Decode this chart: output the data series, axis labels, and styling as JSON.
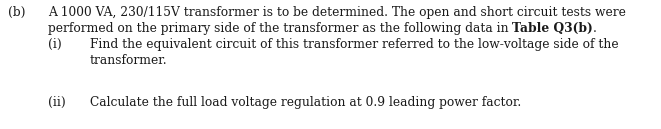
{
  "bg_color": "#ffffff",
  "text_color": "#1a1a1a",
  "label_b": "(b)",
  "line1": "A 1000 VA, 230/115V transformer is to be determined. The open and short circuit tests were",
  "line2_plain": "performed on the primary side of the transformer as the following data in ",
  "line2_bold": "Table Q3(b)",
  "line2_bold_end": ".",
  "sub_i_label": "(i)",
  "sub_i_line1": "Find the equivalent circuit of this transformer referred to the low-voltage side of the",
  "sub_i_line2": "transformer.",
  "sub_ii_label": "(ii)",
  "sub_ii_line": "Calculate the full load voltage regulation at 0.9 leading power factor.",
  "font_size": 8.8,
  "font_family": "serif"
}
